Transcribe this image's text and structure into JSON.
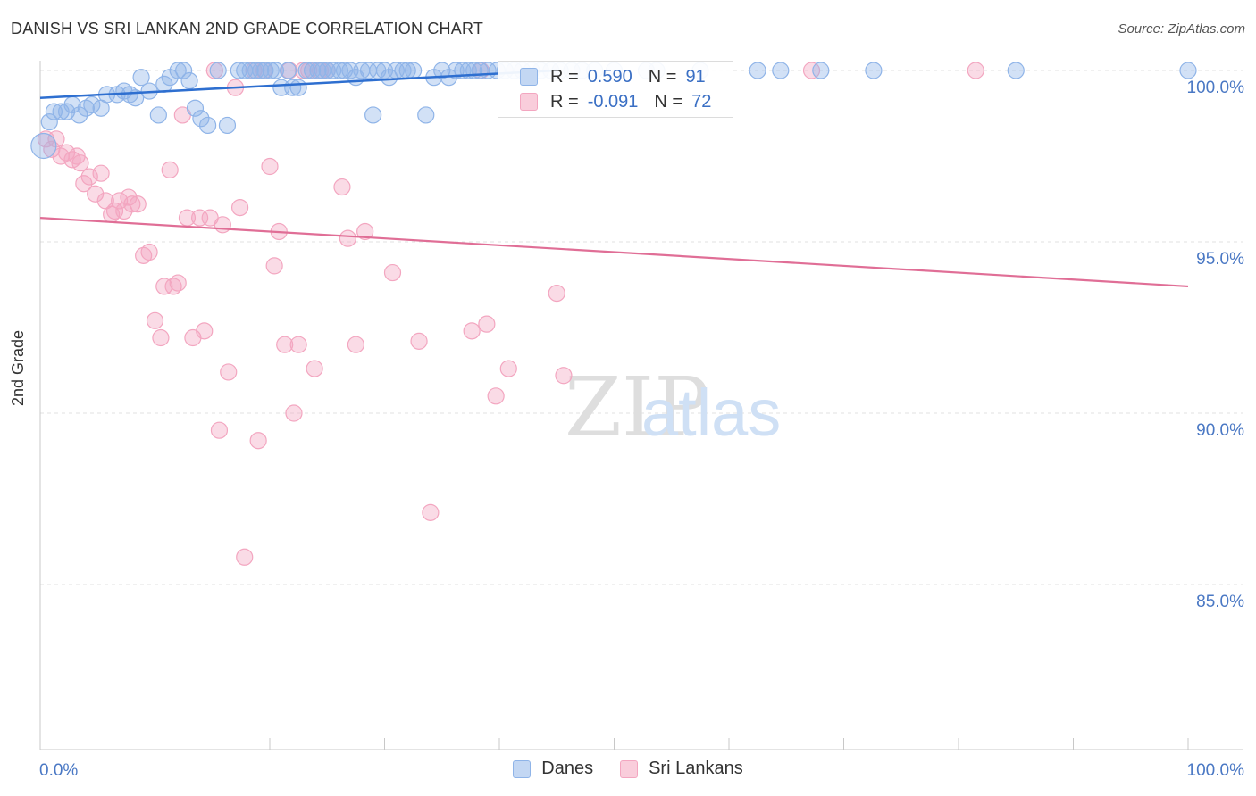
{
  "title": "DANISH VS SRI LANKAN 2ND GRADE CORRELATION CHART",
  "source": "Source: ZipAtlas.com",
  "watermark": {
    "zip": "ZIP",
    "atlas": "atlas"
  },
  "colors": {
    "blue": "#8fb4e8",
    "blue_line": "#2e6fd0",
    "pink": "#f3a6c0",
    "pink_line": "#e06e96",
    "tick_text": "#4a78c4",
    "grid": "#e1e1e1"
  },
  "legend": {
    "blue": {
      "r_label": "R =",
      "r_value": "0.590",
      "n_label": "N =",
      "n_value": "91"
    },
    "pink": {
      "r_label": "R =",
      "r_value": "-0.091",
      "n_label": "N =",
      "n_value": "72"
    }
  },
  "bottom_legend": {
    "blue": "Danes",
    "pink": "Sri Lankans"
  },
  "chart_data": {
    "type": "scatter",
    "title": "DANISH VS SRI LANKAN 2ND GRADE CORRELATION CHART",
    "xlabel": "",
    "ylabel": "2nd Grade",
    "xlim": [
      0,
      100
    ],
    "ylim": [
      80.5,
      100.8
    ],
    "x_tick_labels": [
      "0.0%",
      "100.0%"
    ],
    "y_ticks": [
      100,
      95,
      90,
      85
    ],
    "y_tick_labels": [
      "100.0%",
      "95.0%",
      "90.0%",
      "85.0%"
    ],
    "grid": "horizontal dashed",
    "legend_position": "top-center",
    "series": [
      {
        "name": "Danes",
        "R": 0.59,
        "N": 91,
        "trend": {
          "x0": 0,
          "y0": 99.2,
          "x1": 45,
          "y1": 100.0
        },
        "points": [
          [
            0.3,
            97.8
          ],
          [
            0.8,
            98.5
          ],
          [
            1.2,
            98.8
          ],
          [
            1.8,
            98.8
          ],
          [
            2.3,
            98.8
          ],
          [
            2.8,
            99.0
          ],
          [
            3.4,
            98.7
          ],
          [
            4,
            98.9
          ],
          [
            4.5,
            99.0
          ],
          [
            5.3,
            98.9
          ],
          [
            5.8,
            99.3
          ],
          [
            6.7,
            99.3
          ],
          [
            7.3,
            99.4
          ],
          [
            7.8,
            99.3
          ],
          [
            8.3,
            99.2
          ],
          [
            8.8,
            99.8
          ],
          [
            9.5,
            99.4
          ],
          [
            10.3,
            98.7
          ],
          [
            10.8,
            99.6
          ],
          [
            11.3,
            99.8
          ],
          [
            12,
            100
          ],
          [
            12.5,
            100
          ],
          [
            13,
            99.7
          ],
          [
            13.5,
            98.9
          ],
          [
            14,
            98.6
          ],
          [
            14.6,
            98.4
          ],
          [
            15.5,
            100
          ],
          [
            16.3,
            98.4
          ],
          [
            17.3,
            100
          ],
          [
            17.8,
            100
          ],
          [
            18.3,
            100
          ],
          [
            18.8,
            100
          ],
          [
            19.2,
            100
          ],
          [
            19.6,
            100
          ],
          [
            20.1,
            100
          ],
          [
            20.5,
            100
          ],
          [
            21,
            99.5
          ],
          [
            21.6,
            100
          ],
          [
            22,
            99.5
          ],
          [
            22.5,
            99.5
          ],
          [
            23.2,
            100
          ],
          [
            23.7,
            100
          ],
          [
            24.2,
            100
          ],
          [
            24.6,
            100
          ],
          [
            25,
            100
          ],
          [
            25.5,
            100
          ],
          [
            26.1,
            100
          ],
          [
            26.5,
            100
          ],
          [
            27,
            100
          ],
          [
            27.5,
            99.8
          ],
          [
            28,
            100
          ],
          [
            28.6,
            100
          ],
          [
            29,
            98.7
          ],
          [
            29.4,
            100
          ],
          [
            30,
            100
          ],
          [
            30.4,
            99.8
          ],
          [
            31,
            100
          ],
          [
            31.6,
            100
          ],
          [
            32,
            100
          ],
          [
            32.5,
            100
          ],
          [
            33.6,
            98.7
          ],
          [
            34.3,
            99.8
          ],
          [
            35,
            100
          ],
          [
            35.6,
            99.8
          ],
          [
            36.2,
            100
          ],
          [
            36.8,
            100
          ],
          [
            37.3,
            100
          ],
          [
            37.8,
            100
          ],
          [
            38.3,
            100
          ],
          [
            39,
            100
          ],
          [
            39.8,
            100
          ],
          [
            40.5,
            100
          ],
          [
            41.3,
            100
          ],
          [
            42,
            100
          ],
          [
            42.8,
            100
          ],
          [
            43.6,
            100
          ],
          [
            44.5,
            100
          ],
          [
            45.3,
            100
          ],
          [
            46.3,
            100
          ],
          [
            47.2,
            100
          ],
          [
            48.3,
            100
          ],
          [
            50,
            100
          ],
          [
            52.8,
            100
          ],
          [
            53.7,
            100
          ],
          [
            57.5,
            100
          ],
          [
            62.5,
            100
          ],
          [
            64.5,
            100
          ],
          [
            68,
            100
          ],
          [
            72.6,
            100
          ],
          [
            85,
            100
          ],
          [
            100,
            100
          ]
        ]
      },
      {
        "name": "Sri Lankans",
        "R": -0.091,
        "N": 72,
        "trend": {
          "x0": 0,
          "y0": 95.7,
          "x1": 100,
          "y1": 93.7
        },
        "points": [
          [
            0.5,
            98.0
          ],
          [
            1,
            97.7
          ],
          [
            1.4,
            98.0
          ],
          [
            1.8,
            97.5
          ],
          [
            2.3,
            97.6
          ],
          [
            2.8,
            97.4
          ],
          [
            3.2,
            97.5
          ],
          [
            3.5,
            97.3
          ],
          [
            3.8,
            96.7
          ],
          [
            4.3,
            96.9
          ],
          [
            4.8,
            96.4
          ],
          [
            5.3,
            97.0
          ],
          [
            5.7,
            96.2
          ],
          [
            6.2,
            95.8
          ],
          [
            6.5,
            95.9
          ],
          [
            6.9,
            96.2
          ],
          [
            7.3,
            95.9
          ],
          [
            7.7,
            96.3
          ],
          [
            8,
            96.1
          ],
          [
            8.5,
            96.1
          ],
          [
            9,
            94.6
          ],
          [
            9.5,
            94.7
          ],
          [
            10,
            92.7
          ],
          [
            10.5,
            92.2
          ],
          [
            10.8,
            93.7
          ],
          [
            11.3,
            97.1
          ],
          [
            11.6,
            93.7
          ],
          [
            12,
            93.8
          ],
          [
            12.4,
            98.7
          ],
          [
            12.8,
            95.7
          ],
          [
            13.3,
            92.2
          ],
          [
            13.9,
            95.7
          ],
          [
            14.3,
            92.4
          ],
          [
            14.8,
            95.7
          ],
          [
            15.2,
            100
          ],
          [
            15.6,
            89.5
          ],
          [
            15.9,
            95.5
          ],
          [
            16.4,
            91.2
          ],
          [
            17,
            99.5
          ],
          [
            17.4,
            96.0
          ],
          [
            17.8,
            85.8
          ],
          [
            18.6,
            100
          ],
          [
            19,
            89.2
          ],
          [
            19.5,
            100
          ],
          [
            20,
            97.2
          ],
          [
            20.4,
            94.3
          ],
          [
            20.8,
            95.3
          ],
          [
            21.3,
            92
          ],
          [
            21.7,
            100
          ],
          [
            22.1,
            90
          ],
          [
            22.5,
            92.0
          ],
          [
            22.9,
            100
          ],
          [
            23.4,
            100
          ],
          [
            23.9,
            91.3
          ],
          [
            24.4,
            100
          ],
          [
            25,
            100
          ],
          [
            26.3,
            96.6
          ],
          [
            26.8,
            95.1
          ],
          [
            27.5,
            92.0
          ],
          [
            28.3,
            95.3
          ],
          [
            30.7,
            94.1
          ],
          [
            33,
            92.1
          ],
          [
            34,
            87.1
          ],
          [
            37.6,
            92.4
          ],
          [
            38.4,
            100
          ],
          [
            38.9,
            92.6
          ],
          [
            39.7,
            90.5
          ],
          [
            40.8,
            91.3
          ],
          [
            45,
            93.5
          ],
          [
            45.6,
            91.1
          ],
          [
            67.2,
            100
          ],
          [
            81.5,
            100
          ]
        ]
      }
    ]
  }
}
